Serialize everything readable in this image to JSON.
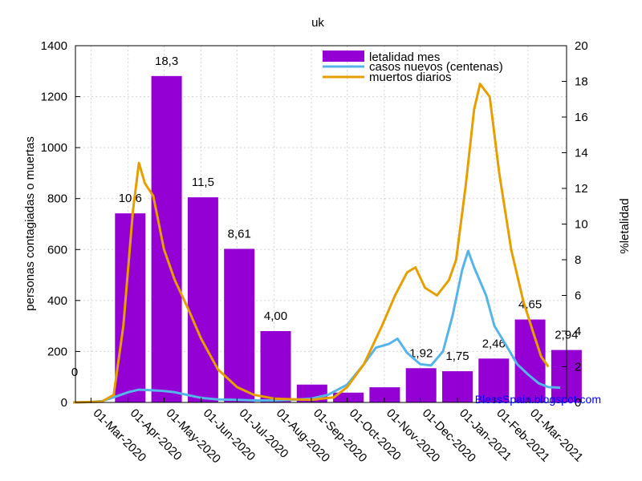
{
  "chart_data": {
    "type": "bar",
    "title": "uk",
    "ylabel_left": "personas contagiadas o muertas",
    "ylabel_right": "%letalidad",
    "ylim_left": [
      0,
      1400
    ],
    "ylim_right": [
      0,
      20
    ],
    "yticks_left": [
      "0",
      "200",
      "400",
      "600",
      "800",
      "1000",
      "1200",
      "1400"
    ],
    "yticks_right": [
      "0",
      "2",
      "4",
      "6",
      "8",
      "10",
      "12",
      "14",
      "16",
      "18",
      "20"
    ],
    "xticks": [
      "01-Mar-2020",
      "01-Apr-2020",
      "01-May-2020",
      "01-Jun-2020",
      "01-Jul-2020",
      "01-Aug-2020",
      "01-Sep-2020",
      "01-Oct-2020",
      "01-Nov-2020",
      "01-Dec-2020",
      "01-Jan-2021",
      "01-Feb-2021",
      "01-Mar-2021"
    ],
    "grid": true,
    "legend_position": "top-right",
    "watermark": "BlessSpain.blogspot.com",
    "colors": {
      "bars": "#9400d3",
      "casos": "#56b4e9",
      "muertos": "#e69f00",
      "grid": "#d3d3d3",
      "watermark": "#0000ff"
    },
    "bars": {
      "name": "letalidad mes",
      "categories": [
        "Feb-2020",
        "Mar-2020",
        "Apr-2020",
        "May-2020",
        "Jun-2020",
        "Jul-2020",
        "Aug-2020",
        "Sep-2020",
        "Oct-2020",
        "Nov-2020",
        "Dec-2020",
        "Jan-2021",
        "Feb-2021",
        "Mar-2021"
      ],
      "values": [
        0,
        10.6,
        18.3,
        11.5,
        8.61,
        4.0,
        1.0,
        0.55,
        0.85,
        1.92,
        1.75,
        2.46,
        4.65,
        2.94
      ],
      "labels": [
        "0",
        "10,6",
        "18,3",
        "11,5",
        "8,61",
        "4,00",
        "",
        "",
        "",
        "1,92",
        "1,75",
        "2,46",
        "4,65",
        "2,94"
      ]
    },
    "series": [
      {
        "name": "casos nuevos (centenas)",
        "axis": "left",
        "points": [
          [
            "2020-02-15",
            0
          ],
          [
            "2020-03-01",
            2
          ],
          [
            "2020-03-10",
            5
          ],
          [
            "2020-03-20",
            20
          ],
          [
            "2020-04-01",
            40
          ],
          [
            "2020-04-10",
            50
          ],
          [
            "2020-04-20",
            48
          ],
          [
            "2020-05-01",
            45
          ],
          [
            "2020-05-10",
            40
          ],
          [
            "2020-05-20",
            30
          ],
          [
            "2020-06-01",
            18
          ],
          [
            "2020-06-15",
            12
          ],
          [
            "2020-07-01",
            10
          ],
          [
            "2020-07-15",
            8
          ],
          [
            "2020-08-01",
            8
          ],
          [
            "2020-08-15",
            10
          ],
          [
            "2020-09-01",
            15
          ],
          [
            "2020-09-15",
            30
          ],
          [
            "2020-10-01",
            70
          ],
          [
            "2020-10-15",
            150
          ],
          [
            "2020-10-25",
            215
          ],
          [
            "2020-11-05",
            230
          ],
          [
            "2020-11-12",
            250
          ],
          [
            "2020-11-20",
            195
          ],
          [
            "2020-12-01",
            150
          ],
          [
            "2020-12-10",
            145
          ],
          [
            "2020-12-20",
            200
          ],
          [
            "2020-12-28",
            340
          ],
          [
            "2021-01-05",
            520
          ],
          [
            "2021-01-10",
            595
          ],
          [
            "2021-01-15",
            530
          ],
          [
            "2021-01-25",
            420
          ],
          [
            "2021-02-01",
            300
          ],
          [
            "2021-02-10",
            230
          ],
          [
            "2021-02-20",
            150
          ],
          [
            "2021-03-01",
            110
          ],
          [
            "2021-03-10",
            75
          ],
          [
            "2021-03-18",
            60
          ],
          [
            "2021-03-28",
            58
          ]
        ]
      },
      {
        "name": "muertos diarios",
        "axis": "left",
        "points": [
          [
            "2020-02-15",
            0
          ],
          [
            "2020-03-10",
            3
          ],
          [
            "2020-03-20",
            30
          ],
          [
            "2020-03-28",
            300
          ],
          [
            "2020-04-05",
            750
          ],
          [
            "2020-04-10",
            940
          ],
          [
            "2020-04-15",
            860
          ],
          [
            "2020-04-22",
            810
          ],
          [
            "2020-05-01",
            600
          ],
          [
            "2020-05-10",
            480
          ],
          [
            "2020-05-20",
            380
          ],
          [
            "2020-06-01",
            250
          ],
          [
            "2020-06-15",
            130
          ],
          [
            "2020-07-01",
            60
          ],
          [
            "2020-07-15",
            30
          ],
          [
            "2020-08-01",
            15
          ],
          [
            "2020-09-01",
            10
          ],
          [
            "2020-09-20",
            20
          ],
          [
            "2020-10-01",
            60
          ],
          [
            "2020-10-15",
            150
          ],
          [
            "2020-10-30",
            300
          ],
          [
            "2020-11-10",
            420
          ],
          [
            "2020-11-20",
            510
          ],
          [
            "2020-11-27",
            530
          ],
          [
            "2020-12-05",
            450
          ],
          [
            "2020-12-15",
            420
          ],
          [
            "2020-12-25",
            480
          ],
          [
            "2020-12-31",
            560
          ],
          [
            "2021-01-08",
            850
          ],
          [
            "2021-01-15",
            1150
          ],
          [
            "2021-01-20",
            1250
          ],
          [
            "2021-01-28",
            1200
          ],
          [
            "2021-02-05",
            900
          ],
          [
            "2021-02-15",
            600
          ],
          [
            "2021-02-25",
            400
          ],
          [
            "2021-03-05",
            280
          ],
          [
            "2021-03-12",
            180
          ],
          [
            "2021-03-18",
            140
          ]
        ]
      }
    ]
  }
}
